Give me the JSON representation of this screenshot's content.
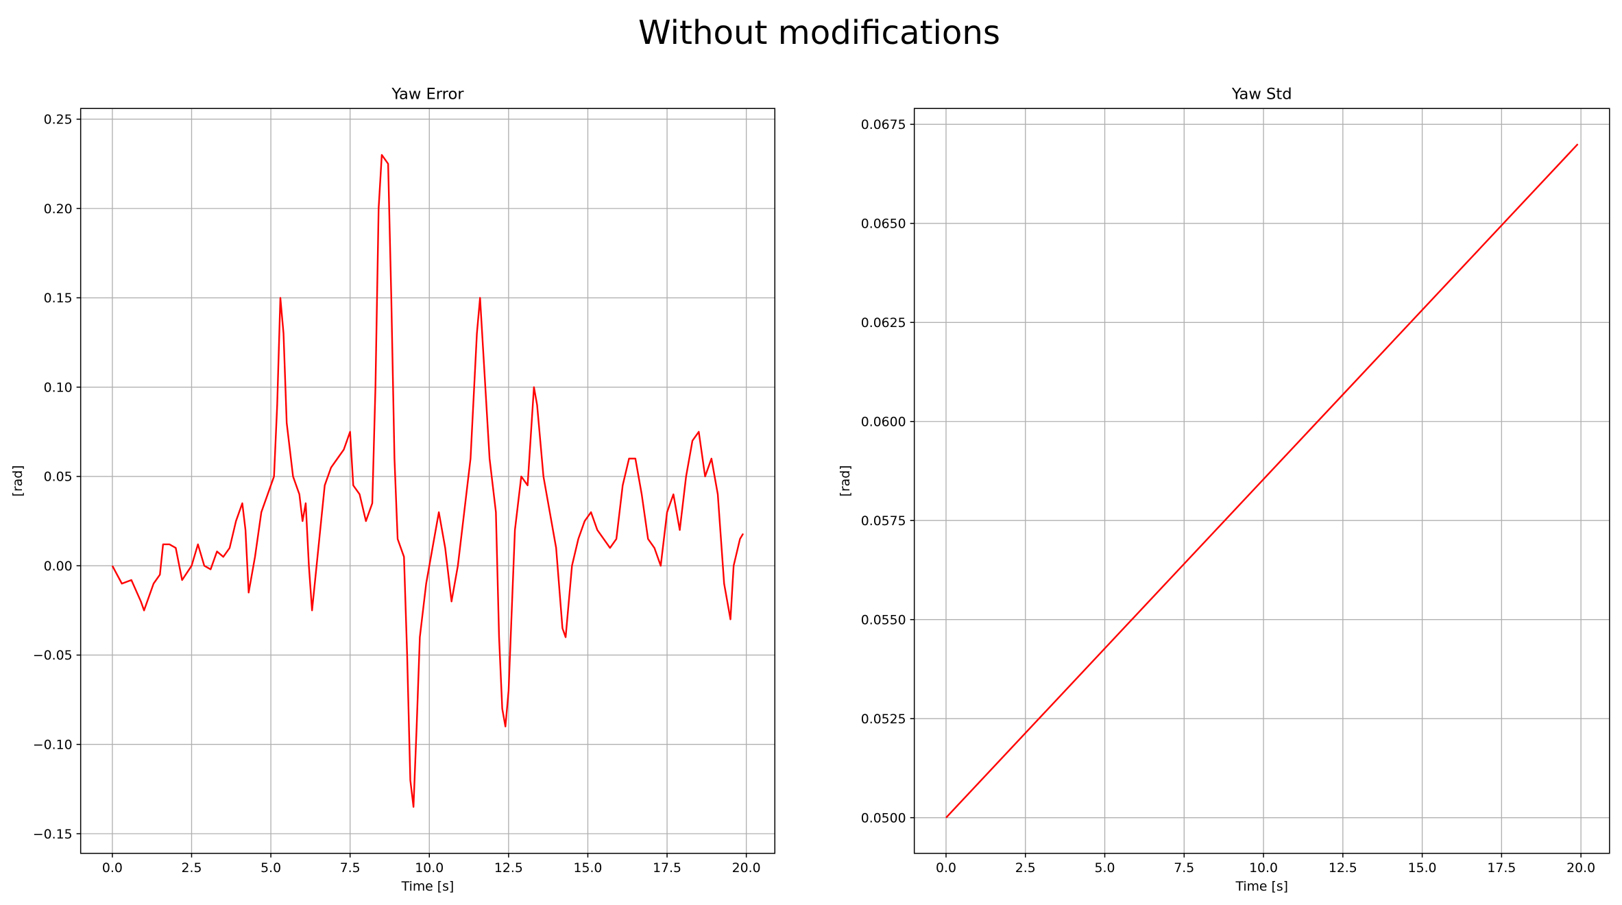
{
  "title": "Without modifications",
  "chart_data": [
    {
      "type": "line",
      "title": "Yaw Error",
      "xlabel": "Time [s]",
      "ylabel": "[rad]",
      "color": "#ff0000",
      "grid": true,
      "xlim": [
        -1.0,
        20.9
      ],
      "ylim": [
        -0.161,
        0.256
      ],
      "xticks": [
        {
          "value": 0,
          "label": "0.0"
        },
        {
          "value": 2.5,
          "label": "2.5"
        },
        {
          "value": 5,
          "label": "5.0"
        },
        {
          "value": 7.5,
          "label": "7.5"
        },
        {
          "value": 10,
          "label": "10.0"
        },
        {
          "value": 12.5,
          "label": "12.5"
        },
        {
          "value": 15,
          "label": "15.0"
        },
        {
          "value": 17.5,
          "label": "17.5"
        },
        {
          "value": 20,
          "label": "20.0"
        }
      ],
      "yticks": [
        {
          "value": -0.15,
          "label": "−0.15"
        },
        {
          "value": -0.1,
          "label": "−0.10"
        },
        {
          "value": -0.05,
          "label": "−0.05"
        },
        {
          "value": 0,
          "label": "0.00"
        },
        {
          "value": 0.05,
          "label": "0.05"
        },
        {
          "value": 0.1,
          "label": "0.10"
        },
        {
          "value": 0.15,
          "label": "0.15"
        },
        {
          "value": 0.2,
          "label": "0.20"
        },
        {
          "value": 0.25,
          "label": "0.25"
        }
      ],
      "x": [
        0,
        0.3,
        0.6,
        0.9,
        1.0,
        1.3,
        1.5,
        1.6,
        1.8,
        2.0,
        2.2,
        2.5,
        2.7,
        2.9,
        3.1,
        3.3,
        3.5,
        3.7,
        3.9,
        4.1,
        4.2,
        4.3,
        4.5,
        4.7,
        4.9,
        5.1,
        5.2,
        5.3,
        5.4,
        5.5,
        5.7,
        5.9,
        6.0,
        6.1,
        6.2,
        6.3,
        6.5,
        6.7,
        6.9,
        7.1,
        7.3,
        7.5,
        7.6,
        7.8,
        8.0,
        8.2,
        8.3,
        8.4,
        8.5,
        8.7,
        8.8,
        8.9,
        9.0,
        9.2,
        9.3,
        9.4,
        9.5,
        9.6,
        9.7,
        9.9,
        10.1,
        10.3,
        10.5,
        10.7,
        10.9,
        11.1,
        11.3,
        11.5,
        11.6,
        11.7,
        11.9,
        12.1,
        12.2,
        12.3,
        12.4,
        12.5,
        12.7,
        12.9,
        13.1,
        13.3,
        13.4,
        13.6,
        13.8,
        14.0,
        14.2,
        14.3,
        14.5,
        14.7,
        14.9,
        15.1,
        15.3,
        15.5,
        15.7,
        15.9,
        16.1,
        16.3,
        16.5,
        16.7,
        16.9,
        17.1,
        17.3,
        17.5,
        17.7,
        17.9,
        18.1,
        18.3,
        18.5,
        18.7,
        18.9,
        19.1,
        19.3,
        19.5,
        19.6,
        19.8,
        19.9
      ],
      "values": [
        0,
        -0.01,
        -0.008,
        -0.02,
        -0.025,
        -0.01,
        -0.005,
        0.012,
        0.012,
        0.01,
        -0.008,
        0,
        0.012,
        0,
        -0.002,
        0.008,
        0.005,
        0.01,
        0.025,
        0.035,
        0.02,
        -0.015,
        0.005,
        0.03,
        0.04,
        0.05,
        0.09,
        0.15,
        0.13,
        0.08,
        0.05,
        0.04,
        0.025,
        0.035,
        0,
        -0.025,
        0.01,
        0.045,
        0.055,
        0.06,
        0.065,
        0.075,
        0.045,
        0.04,
        0.025,
        0.035,
        0.1,
        0.2,
        0.23,
        0.225,
        0.15,
        0.06,
        0.015,
        0.005,
        -0.05,
        -0.12,
        -0.135,
        -0.09,
        -0.04,
        -0.01,
        0.01,
        0.03,
        0.01,
        -0.02,
        0,
        0.03,
        0.06,
        0.13,
        0.15,
        0.12,
        0.06,
        0.03,
        -0.04,
        -0.08,
        -0.09,
        -0.07,
        0.02,
        0.05,
        0.045,
        0.1,
        0.09,
        0.05,
        0.03,
        0.01,
        -0.035,
        -0.04,
        0,
        0.015,
        0.025,
        0.03,
        0.02,
        0.015,
        0.01,
        0.015,
        0.045,
        0.06,
        0.06,
        0.04,
        0.015,
        0.01,
        0,
        0.03,
        0.04,
        0.02,
        0.05,
        0.07,
        0.075,
        0.05,
        0.06,
        0.04,
        -0.01,
        -0.03,
        0,
        0.015,
        0.018
      ]
    },
    {
      "type": "line",
      "title": "Yaw Std",
      "xlabel": "Time [s]",
      "ylabel": "[rad]",
      "color": "#ff0000",
      "grid": true,
      "xlim": [
        -1.0,
        20.9
      ],
      "ylim": [
        0.0491,
        0.0679
      ],
      "xticks": [
        {
          "value": 0,
          "label": "0.0"
        },
        {
          "value": 2.5,
          "label": "2.5"
        },
        {
          "value": 5,
          "label": "5.0"
        },
        {
          "value": 7.5,
          "label": "7.5"
        },
        {
          "value": 10,
          "label": "10.0"
        },
        {
          "value": 12.5,
          "label": "12.5"
        },
        {
          "value": 15,
          "label": "15.0"
        },
        {
          "value": 17.5,
          "label": "17.5"
        },
        {
          "value": 20,
          "label": "20.0"
        }
      ],
      "yticks": [
        {
          "value": 0.05,
          "label": "0.0500"
        },
        {
          "value": 0.0525,
          "label": "0.0525"
        },
        {
          "value": 0.055,
          "label": "0.0550"
        },
        {
          "value": 0.0575,
          "label": "0.0575"
        },
        {
          "value": 0.06,
          "label": "0.0600"
        },
        {
          "value": 0.0625,
          "label": "0.0625"
        },
        {
          "value": 0.065,
          "label": "0.0650"
        },
        {
          "value": 0.0675,
          "label": "0.0675"
        }
      ],
      "x": [
        0,
        19.9
      ],
      "values": [
        0.05,
        0.067
      ]
    }
  ]
}
